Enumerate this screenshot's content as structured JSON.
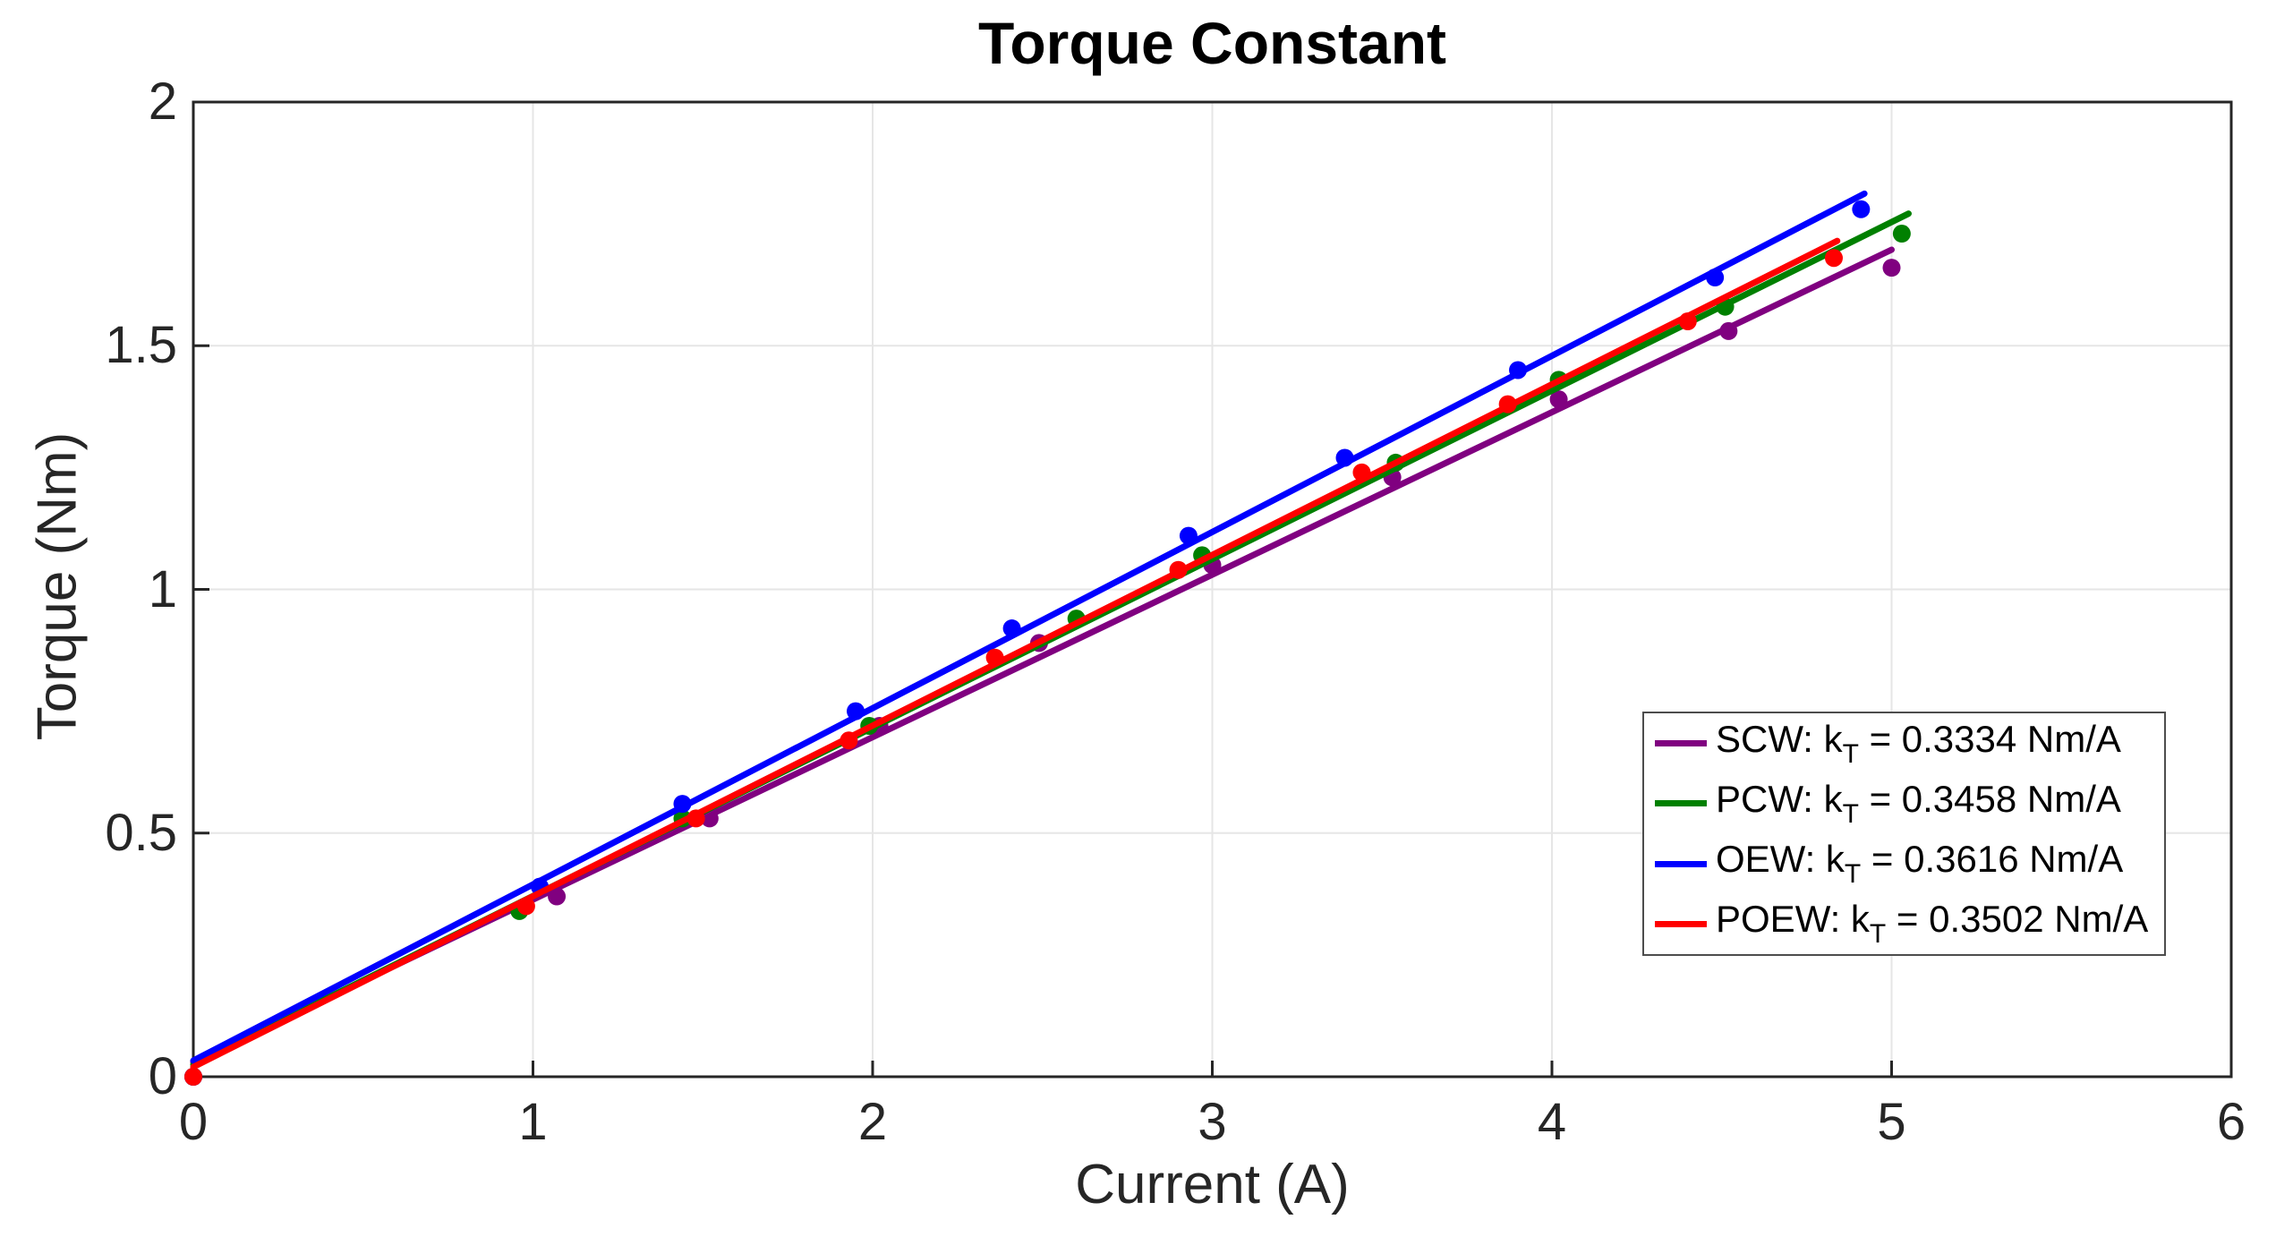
{
  "chart_data": {
    "type": "scatter",
    "title": "Torque Constant",
    "xlabel": "Current (A)",
    "ylabel": "Torque (Nm)",
    "xlim": [
      0,
      6
    ],
    "ylim": [
      0,
      2
    ],
    "xticks": [
      "0",
      "1",
      "2",
      "3",
      "4",
      "5",
      "6"
    ],
    "yticks": [
      "0",
      "0.5",
      "1",
      "1.5",
      "2"
    ],
    "grid": true,
    "legend_position": "inside-lower-right",
    "axis_color": "#262626",
    "grid_color": "#e6e6e6",
    "series": [
      {
        "name": "SCW",
        "color": "#800080",
        "kT": 0.3334,
        "kT_units": "Nm/A",
        "legend": {
          "prefix": "SCW: k",
          "sub": "T",
          "suffix": " = 0.3334 Nm/A"
        },
        "fit_line": {
          "x0": 0,
          "y0": 0.03,
          "x1": 5.0,
          "y1": 1.697
        },
        "points": [
          [
            0,
            0
          ],
          [
            1.07,
            0.37
          ],
          [
            1.52,
            0.53
          ],
          [
            2.02,
            0.72
          ],
          [
            2.49,
            0.89
          ],
          [
            3.0,
            1.05
          ],
          [
            3.53,
            1.23
          ],
          [
            4.02,
            1.39
          ],
          [
            4.52,
            1.53
          ],
          [
            5.0,
            1.66
          ]
        ]
      },
      {
        "name": "PCW",
        "color": "#008000",
        "kT": 0.3458,
        "kT_units": "Nm/A",
        "legend": {
          "prefix": "PCW: k",
          "sub": "T",
          "suffix": " = 0.3458 Nm/A"
        },
        "fit_line": {
          "x0": 0,
          "y0": 0.025,
          "x1": 5.05,
          "y1": 1.771
        },
        "points": [
          [
            0,
            0
          ],
          [
            0.96,
            0.34
          ],
          [
            1.44,
            0.53
          ],
          [
            1.99,
            0.72
          ],
          [
            2.6,
            0.94
          ],
          [
            2.97,
            1.07
          ],
          [
            3.54,
            1.26
          ],
          [
            4.02,
            1.43
          ],
          [
            4.51,
            1.58
          ],
          [
            5.03,
            1.73
          ]
        ]
      },
      {
        "name": "OEW",
        "color": "#0000ff",
        "kT": 0.3616,
        "kT_units": "Nm/A",
        "legend": {
          "prefix": "OEW: k",
          "sub": "T",
          "suffix": " = 0.3616 Nm/A"
        },
        "fit_line": {
          "x0": 0,
          "y0": 0.033,
          "x1": 4.92,
          "y1": 1.812
        },
        "points": [
          [
            0,
            0
          ],
          [
            1.02,
            0.39
          ],
          [
            1.44,
            0.56
          ],
          [
            1.95,
            0.75
          ],
          [
            2.41,
            0.92
          ],
          [
            2.93,
            1.11
          ],
          [
            3.39,
            1.27
          ],
          [
            3.9,
            1.45
          ],
          [
            4.48,
            1.64
          ],
          [
            4.91,
            1.78
          ]
        ]
      },
      {
        "name": "POEW",
        "color": "#ff0000",
        "kT": 0.3502,
        "kT_units": "Nm/A",
        "legend": {
          "prefix": "POEW: k",
          "sub": "T",
          "suffix": " = 0.3502 Nm/A"
        },
        "fit_line": {
          "x0": 0,
          "y0": 0.02,
          "x1": 4.84,
          "y1": 1.715
        },
        "points": [
          [
            0,
            0
          ],
          [
            0.98,
            0.35
          ],
          [
            1.48,
            0.53
          ],
          [
            1.93,
            0.69
          ],
          [
            2.36,
            0.86
          ],
          [
            2.9,
            1.04
          ],
          [
            3.44,
            1.24
          ],
          [
            3.87,
            1.38
          ],
          [
            4.4,
            1.55
          ],
          [
            4.83,
            1.68
          ]
        ]
      }
    ]
  }
}
